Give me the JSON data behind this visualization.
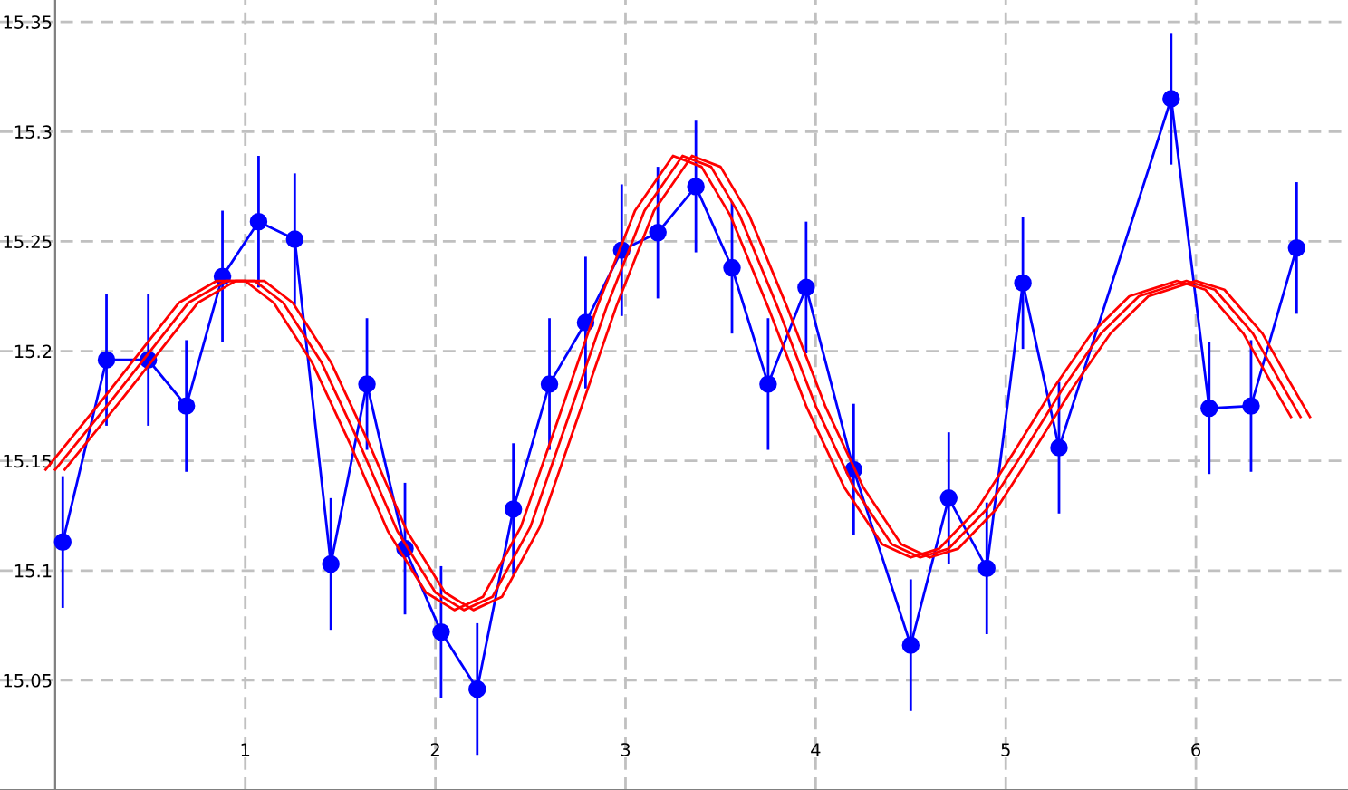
{
  "chart_data": {
    "type": "line",
    "xlim": [
      -0.29,
      6.8
    ],
    "ylim": [
      15.0,
      15.36
    ],
    "xticks": [
      1,
      2,
      3,
      4,
      5,
      6
    ],
    "yticks": [
      15.05,
      15.1,
      15.15,
      15.2,
      15.25,
      15.3,
      15.35
    ],
    "grid": true,
    "marker": "none",
    "line_style": "solid",
    "series": [
      {
        "color": "#0000ff",
        "marker": "circle",
        "x": [
          0.04,
          0.27,
          0.49,
          0.69,
          0.88,
          1.07,
          1.26,
          1.45,
          1.64,
          1.84,
          2.03,
          2.22,
          2.41,
          2.6,
          2.79,
          2.98,
          3.17,
          3.37,
          3.56,
          3.75,
          3.95,
          4.2,
          4.5,
          4.7,
          4.9,
          5.09,
          5.28,
          5.87,
          6.07,
          6.29,
          6.53
        ],
        "values": [
          15.113,
          15.196,
          15.196,
          15.175,
          15.234,
          15.259,
          15.251,
          15.103,
          15.185,
          15.11,
          15.072,
          15.046,
          15.128,
          15.185,
          15.213,
          15.246,
          15.254,
          15.275,
          15.238,
          15.185,
          15.229,
          15.146,
          15.066,
          15.133,
          15.101,
          15.231,
          15.156,
          15.315,
          15.174,
          15.175,
          15.247
        ],
        "errors": [
          0.03,
          0.03,
          0.03,
          0.03,
          0.03,
          0.03,
          0.03,
          0.03,
          0.03,
          0.03,
          0.03,
          0.03,
          0.03,
          0.03,
          0.03,
          0.03,
          0.03,
          0.03,
          0.03,
          0.03,
          0.03,
          0.03,
          0.03,
          0.03,
          0.03,
          0.03,
          0.03,
          0.03,
          0.03,
          0.03,
          0.03
        ]
      },
      {
        "color": "#ff0000",
        "x": [
          0.0,
          0.3,
          0.5,
          0.7,
          0.9,
          1.05,
          1.2,
          1.4,
          1.6,
          1.8,
          2.0,
          2.15,
          2.3,
          2.5,
          2.7,
          2.9,
          3.1,
          3.3,
          3.45,
          3.6,
          3.8,
          4.0,
          4.2,
          4.4,
          4.55,
          4.7,
          4.9,
          5.1,
          5.3,
          5.5,
          5.7,
          5.95,
          6.1,
          6.3,
          6.45,
          6.55
        ],
        "values": [
          15.146,
          15.178,
          15.2,
          15.222,
          15.232,
          15.232,
          15.222,
          15.195,
          15.158,
          15.118,
          15.09,
          15.082,
          15.088,
          15.12,
          15.17,
          15.22,
          15.264,
          15.289,
          15.284,
          15.262,
          15.22,
          15.175,
          15.138,
          15.112,
          15.106,
          15.11,
          15.128,
          15.155,
          15.183,
          15.208,
          15.225,
          15.232,
          15.228,
          15.208,
          15.185,
          15.17
        ]
      },
      {
        "color": "#ff0000",
        "x": [
          -0.05,
          0.25,
          0.45,
          0.65,
          0.85,
          1.0,
          1.15,
          1.35,
          1.55,
          1.75,
          1.95,
          2.1,
          2.25,
          2.45,
          2.65,
          2.85,
          3.05,
          3.25,
          3.4,
          3.55,
          3.75,
          3.95,
          4.15,
          4.35,
          4.5,
          4.65,
          4.85,
          5.05,
          5.25,
          5.45,
          5.65,
          5.9,
          6.05,
          6.25,
          6.4,
          6.5
        ],
        "values": [
          15.146,
          15.178,
          15.2,
          15.222,
          15.232,
          15.232,
          15.222,
          15.195,
          15.158,
          15.118,
          15.09,
          15.082,
          15.088,
          15.12,
          15.17,
          15.22,
          15.264,
          15.289,
          15.284,
          15.262,
          15.22,
          15.175,
          15.138,
          15.112,
          15.106,
          15.11,
          15.128,
          15.155,
          15.183,
          15.208,
          15.225,
          15.232,
          15.228,
          15.208,
          15.185,
          15.17
        ]
      },
      {
        "color": "#ff0000",
        "x": [
          0.05,
          0.35,
          0.55,
          0.75,
          0.95,
          1.1,
          1.25,
          1.45,
          1.65,
          1.85,
          2.05,
          2.2,
          2.35,
          2.55,
          2.75,
          2.95,
          3.15,
          3.35,
          3.5,
          3.65,
          3.85,
          4.05,
          4.25,
          4.45,
          4.6,
          4.75,
          4.95,
          5.15,
          5.35,
          5.55,
          5.75,
          6.0,
          6.15,
          6.35,
          6.5,
          6.6
        ],
        "values": [
          15.146,
          15.178,
          15.2,
          15.222,
          15.232,
          15.232,
          15.222,
          15.195,
          15.158,
          15.118,
          15.09,
          15.082,
          15.088,
          15.12,
          15.17,
          15.22,
          15.264,
          15.289,
          15.284,
          15.262,
          15.22,
          15.175,
          15.138,
          15.112,
          15.106,
          15.11,
          15.128,
          15.155,
          15.183,
          15.208,
          15.225,
          15.232,
          15.228,
          15.208,
          15.185,
          15.17
        ]
      }
    ]
  }
}
